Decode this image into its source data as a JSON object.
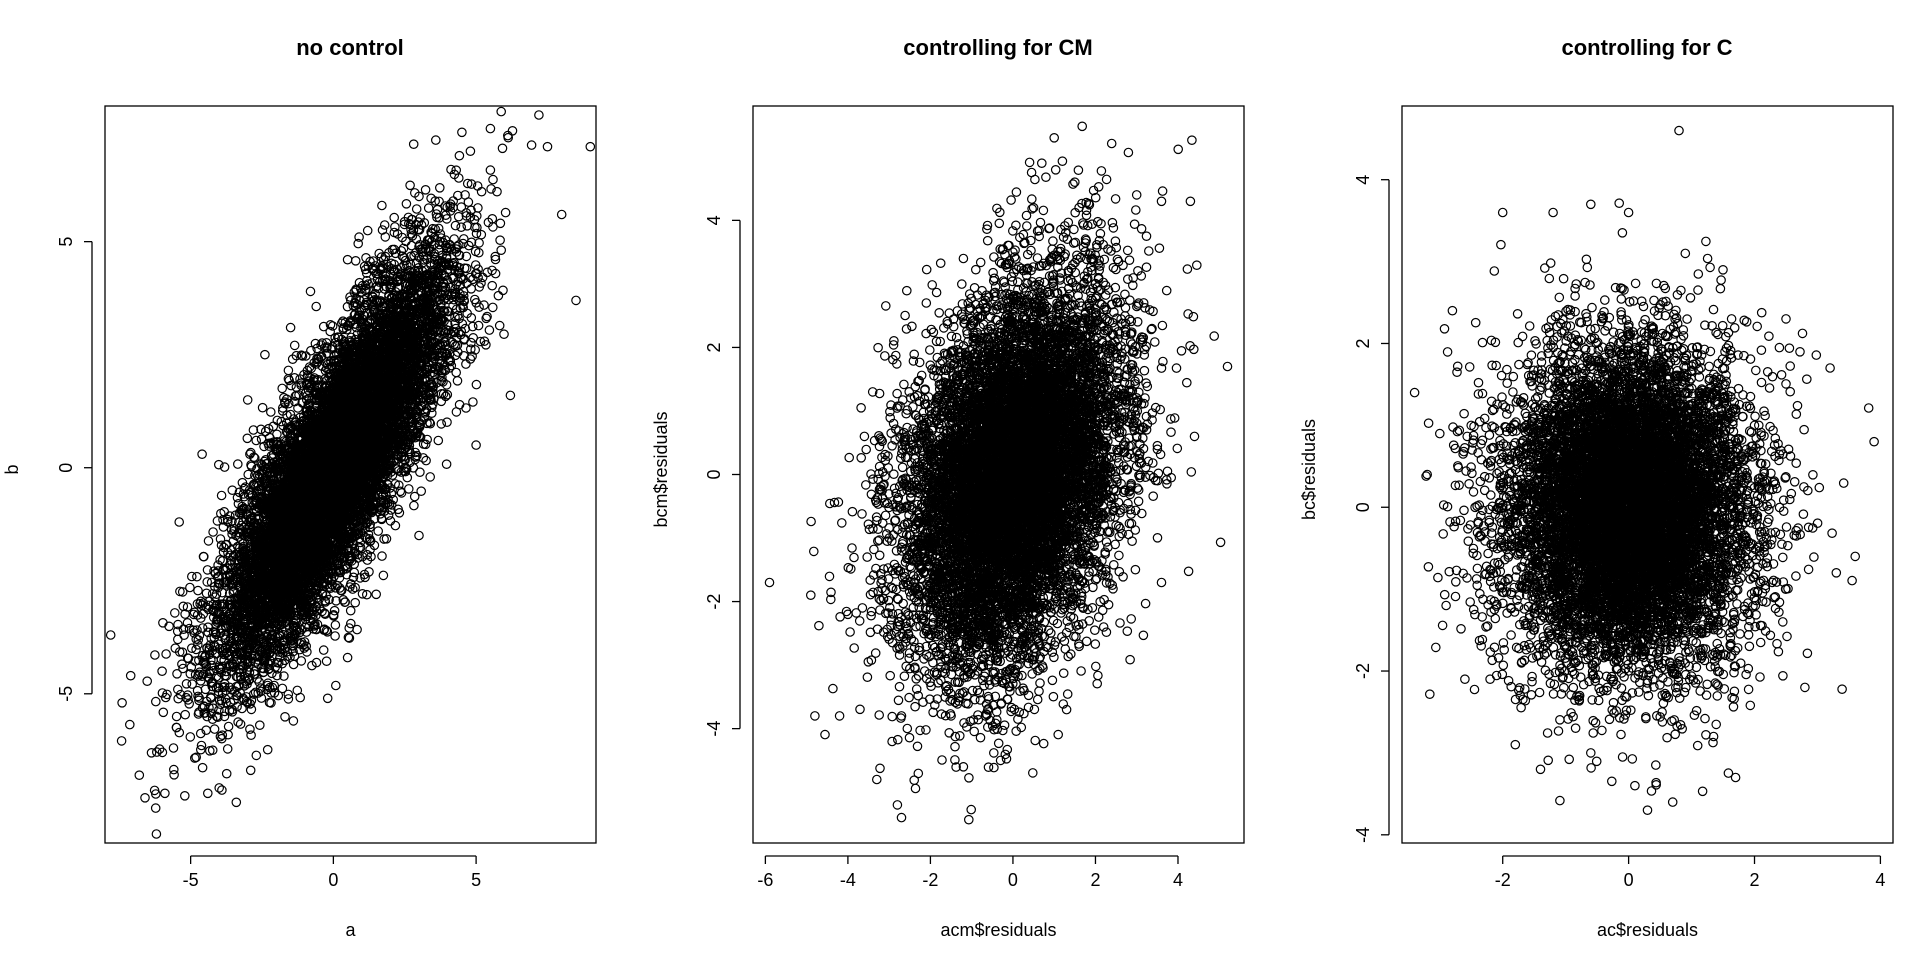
{
  "chart_data": [
    {
      "type": "scatter",
      "title": "no control",
      "xlabel": "a",
      "ylabel": "b",
      "xlim": [
        -8,
        9.2
      ],
      "ylim": [
        -8.3,
        8.0
      ],
      "xticks": [
        -5,
        0,
        5
      ],
      "yticks": [
        -5,
        0,
        5
      ],
      "grid": false,
      "series": [
        {
          "n_points": 10000,
          "distribution": "bivariate normal",
          "mean": [
            0,
            0
          ],
          "sd": [
            2.0,
            2.2
          ],
          "correlation": 0.82,
          "values": [
            [
              -7.8,
              -3.7
            ],
            [
              -7.4,
              -5.2
            ],
            [
              -7.1,
              -4.6
            ],
            [
              -6.8,
              -6.8
            ],
            [
              -6.6,
              -7.3
            ],
            [
              -6.2,
              -8.1
            ],
            [
              -5.9,
              -7.2
            ],
            [
              -5.6,
              -6.2
            ],
            [
              -4.4,
              -7.2
            ],
            [
              -3.4,
              -7.4
            ],
            [
              -5.4,
              -1.2
            ],
            [
              -4.6,
              0.3
            ],
            [
              -3.0,
              1.5
            ],
            [
              -2.4,
              2.5
            ],
            [
              -1.5,
              3.1
            ],
            [
              -0.8,
              3.9
            ],
            [
              0.5,
              4.6
            ],
            [
              0.9,
              5.1
            ],
            [
              1.7,
              5.8
            ],
            [
              3.0,
              6.0
            ],
            [
              4.8,
              7.0
            ],
            [
              5.5,
              7.5
            ],
            [
              7.2,
              7.8
            ],
            [
              7.5,
              7.1
            ],
            [
              9.0,
              7.1
            ],
            [
              8.0,
              5.6
            ],
            [
              8.5,
              3.7
            ],
            [
              6.2,
              1.6
            ],
            [
              5.0,
              0.5
            ],
            [
              3.0,
              -1.5
            ],
            [
              1.5,
              -2.8
            ],
            [
              0.5,
              -4.2
            ],
            [
              -0.2,
              -5.1
            ],
            [
              -1.4,
              -5.6
            ],
            [
              -3.5,
              -3.6
            ],
            [
              -6.0,
              -4.5
            ],
            [
              -2.0,
              -1.0
            ],
            [
              1.0,
              1.5
            ],
            [
              0.0,
              0.0
            ],
            [
              2.5,
              2.0
            ]
          ]
        }
      ]
    },
    {
      "type": "scatter",
      "title": "controlling for CM",
      "xlabel": "acm$residuals",
      "ylabel": "bcm$residuals",
      "xlim": [
        -6.3,
        5.6
      ],
      "ylim": [
        -5.8,
        5.8
      ],
      "xticks": [
        -6,
        -4,
        -2,
        0,
        2,
        4
      ],
      "yticks": [
        -4,
        -2,
        0,
        2,
        4
      ],
      "grid": false,
      "series": [
        {
          "n_points": 10000,
          "distribution": "bivariate normal",
          "mean": [
            0,
            0
          ],
          "sd": [
            1.3,
            1.5
          ],
          "correlation": 0.33,
          "values": [
            [
              -5.9,
              -1.7
            ],
            [
              -4.9,
              -1.9
            ],
            [
              -4.8,
              -3.8
            ],
            [
              -4.2,
              -3.8
            ],
            [
              -3.3,
              -4.8
            ],
            [
              -2.8,
              -5.2
            ],
            [
              -2.7,
              -5.4
            ],
            [
              -1.2,
              -4.6
            ],
            [
              -0.3,
              -4.5
            ],
            [
              -3.6,
              0.6
            ],
            [
              -3.4,
              1.3
            ],
            [
              -2.1,
              2.7
            ],
            [
              -1.2,
              3.4
            ],
            [
              0.0,
              3.5
            ],
            [
              0.5,
              4.2
            ],
            [
              0.7,
              4.9
            ],
            [
              1.0,
              5.3
            ],
            [
              1.5,
              4.6
            ],
            [
              3.0,
              4.4
            ],
            [
              3.6,
              4.3
            ],
            [
              4.3,
              4.3
            ],
            [
              5.2,
              1.7
            ],
            [
              4.4,
              0.6
            ],
            [
              3.6,
              -1.7
            ],
            [
              2.2,
              -2.4
            ],
            [
              1.3,
              -3.7
            ],
            [
              0.1,
              -3.0
            ],
            [
              -1.5,
              -3.8
            ],
            [
              -4.0,
              -2.2
            ],
            [
              -3.0,
              -1.0
            ],
            [
              -2.0,
              0.0
            ],
            [
              -1.0,
              -0.5
            ],
            [
              0.0,
              0.0
            ],
            [
              1.0,
              1.0
            ],
            [
              2.0,
              2.0
            ],
            [
              2.5,
              -0.8
            ],
            [
              -0.5,
              1.5
            ],
            [
              1.5,
              0.5
            ],
            [
              0.5,
              -1.5
            ],
            [
              -1.5,
              -1.5
            ]
          ]
        }
      ]
    },
    {
      "type": "scatter",
      "title": "controlling for C",
      "xlabel": "ac$residuals",
      "ylabel": "bc$residuals",
      "xlim": [
        -3.6,
        4.2
      ],
      "ylim": [
        -4.1,
        4.9
      ],
      "xticks": [
        -2,
        0,
        2,
        4
      ],
      "yticks": [
        -4,
        -2,
        0,
        2,
        4
      ],
      "grid": false,
      "series": [
        {
          "n_points": 10000,
          "distribution": "bivariate normal",
          "mean": [
            0,
            0
          ],
          "sd": [
            0.95,
            0.95
          ],
          "correlation": 0.0,
          "values": [
            [
              -3.4,
              1.4
            ],
            [
              -3.2,
              0.4
            ],
            [
              -2.9,
              -1.2
            ],
            [
              -2.8,
              2.4
            ],
            [
              -2.6,
              -2.1
            ],
            [
              -2.0,
              3.6
            ],
            [
              -1.8,
              -2.9
            ],
            [
              -1.4,
              -3.2
            ],
            [
              -1.2,
              3.6
            ],
            [
              -0.6,
              3.7
            ],
            [
              0.0,
              3.6
            ],
            [
              0.8,
              4.6
            ],
            [
              0.9,
              3.1
            ],
            [
              1.5,
              2.9
            ],
            [
              2.5,
              2.3
            ],
            [
              3.2,
              1.7
            ],
            [
              3.9,
              0.8
            ],
            [
              3.6,
              -0.6
            ],
            [
              3.3,
              -0.8
            ],
            [
              2.8,
              -2.2
            ],
            [
              1.7,
              -3.3
            ],
            [
              0.7,
              -3.6
            ],
            [
              0.3,
              -3.7
            ],
            [
              0.1,
              -3.4
            ],
            [
              -0.6,
              -3.0
            ],
            [
              -2.2,
              -2.1
            ],
            [
              -3.0,
              0.9
            ],
            [
              -2.0,
              0.0
            ],
            [
              -1.0,
              1.0
            ],
            [
              0.0,
              0.0
            ],
            [
              1.0,
              -1.0
            ],
            [
              2.0,
              1.0
            ],
            [
              -1.5,
              -1.5
            ],
            [
              1.5,
              1.5
            ],
            [
              0.5,
              -0.5
            ],
            [
              -0.5,
              0.5
            ],
            [
              2.5,
              -1.0
            ],
            [
              -2.5,
              1.0
            ],
            [
              0.0,
              2.0
            ],
            [
              0.0,
              -2.0
            ]
          ]
        }
      ]
    }
  ]
}
